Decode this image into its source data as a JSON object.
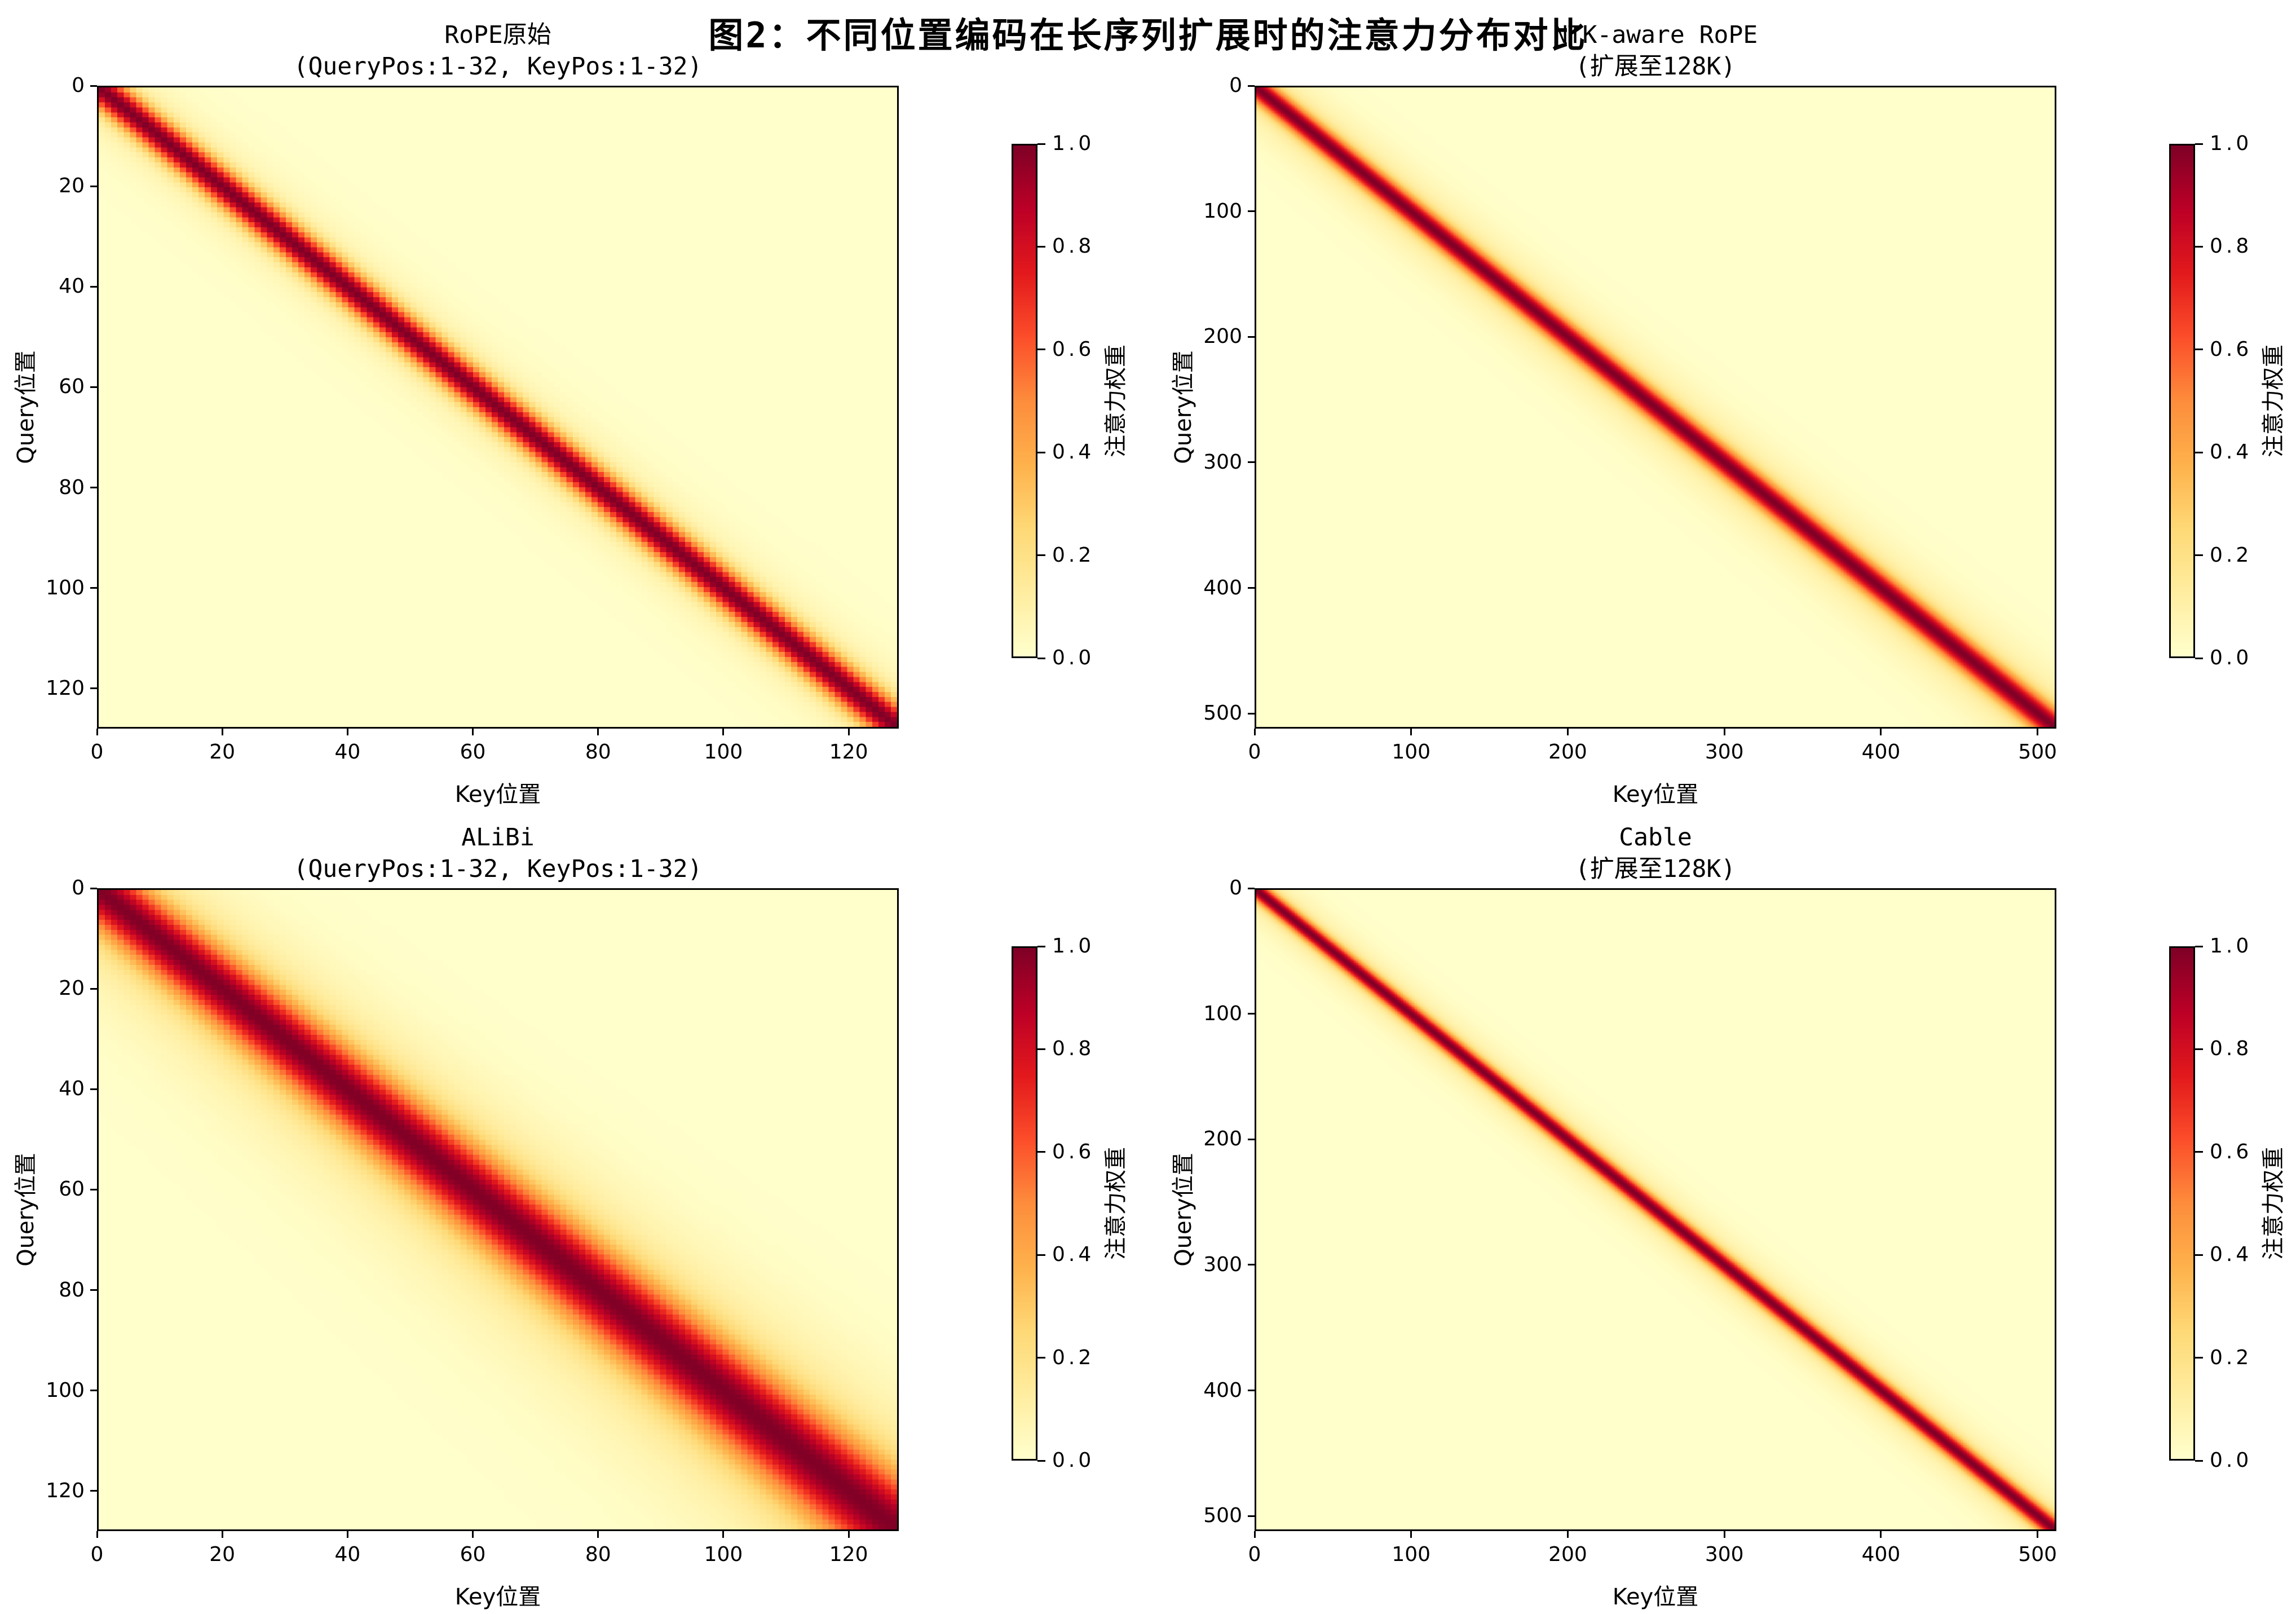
{
  "figure_title": "图2：不同位置编码在长序列扩展时的注意力分布对比",
  "colormap": {
    "name": "YlOrRd",
    "stops": [
      {
        "t": 0.0,
        "color": "#ffffcc"
      },
      {
        "t": 0.125,
        "color": "#ffeda0"
      },
      {
        "t": 0.25,
        "color": "#fed976"
      },
      {
        "t": 0.375,
        "color": "#feb24c"
      },
      {
        "t": 0.5,
        "color": "#fd8d3c"
      },
      {
        "t": 0.625,
        "color": "#fc4e2a"
      },
      {
        "t": 0.75,
        "color": "#e31a1c"
      },
      {
        "t": 0.875,
        "color": "#bd0026"
      },
      {
        "t": 1.0,
        "color": "#800026"
      }
    ]
  },
  "chart_data": [
    {
      "type": "heatmap",
      "title": "RoPE原始",
      "subtitle": "(QueryPos:1-32, KeyPos:1-32)",
      "xlabel": "Key位置",
      "ylabel": "Query位置",
      "grid_n": 128,
      "x_range": [
        0,
        128
      ],
      "y_range": [
        0,
        128
      ],
      "x_ticks": [
        0,
        20,
        40,
        60,
        80,
        100,
        120
      ],
      "y_ticks": [
        0,
        20,
        40,
        60,
        80,
        100,
        120
      ],
      "value_range": [
        0.0,
        1.0
      ],
      "value_model": {
        "kind": "gaussian_band_on_diagonal",
        "peak": 1.0,
        "background": 0.0,
        "sigma_start": 2.8,
        "sigma_end": 3.2,
        "halo_weight": 0.12,
        "halo_sigma_mult": 2.6
      },
      "colorbar": {
        "label": "注意力权重",
        "ticks": [
          "1.0",
          "0.8",
          "0.6",
          "0.4",
          "0.2",
          "0.0"
        ],
        "order": "top_to_bottom"
      }
    },
    {
      "type": "heatmap",
      "title": "NTK-aware RoPE",
      "subtitle": "(扩展至128K)",
      "xlabel": "Key位置",
      "ylabel": "Query位置",
      "grid_n": 512,
      "x_range": [
        0,
        512
      ],
      "y_range": [
        0,
        512
      ],
      "x_ticks": [
        0,
        100,
        200,
        300,
        400,
        500
      ],
      "y_ticks": [
        0,
        100,
        200,
        300,
        400,
        500
      ],
      "value_range": [
        0.0,
        1.0
      ],
      "value_model": {
        "kind": "gaussian_band_on_diagonal",
        "peak": 1.0,
        "background": 0.0,
        "sigma_start": 8.0,
        "sigma_end": 10.0,
        "halo_weight": 0.15,
        "halo_sigma_mult": 3.0
      },
      "colorbar": {
        "label": "注意力权重",
        "ticks": [
          "1.0",
          "0.8",
          "0.6",
          "0.4",
          "0.2",
          "0.0"
        ],
        "order": "top_to_bottom"
      }
    },
    {
      "type": "heatmap",
      "title": "ALiBi",
      "subtitle": "(QueryPos:1-32, KeyPos:1-32)",
      "xlabel": "Key位置",
      "ylabel": "Query位置",
      "grid_n": 128,
      "x_range": [
        0,
        128
      ],
      "y_range": [
        0,
        128
      ],
      "x_ticks": [
        0,
        20,
        40,
        60,
        80,
        100,
        120
      ],
      "y_ticks": [
        0,
        20,
        40,
        60,
        80,
        100,
        120
      ],
      "value_range": [
        0.0,
        1.0
      ],
      "value_model": {
        "kind": "gaussian_band_on_diagonal",
        "peak": 1.0,
        "background": 0.0,
        "sigma_start": 5.0,
        "sigma_end": 7.5,
        "halo_weight": 0.2,
        "halo_sigma_mult": 2.5
      },
      "colorbar": {
        "label": "注意力权重",
        "ticks": [
          "1.0",
          "0.8",
          "0.6",
          "0.4",
          "0.2",
          "0.0"
        ],
        "order": "top_to_bottom"
      }
    },
    {
      "type": "heatmap",
      "title": "Cable",
      "subtitle": "(扩展至128K)",
      "xlabel": "Key位置",
      "ylabel": "Query位置",
      "grid_n": 512,
      "x_range": [
        0,
        512
      ],
      "y_range": [
        0,
        512
      ],
      "x_ticks": [
        0,
        100,
        200,
        300,
        400,
        500
      ],
      "y_ticks": [
        0,
        100,
        200,
        300,
        400,
        500
      ],
      "value_range": [
        0.0,
        1.0
      ],
      "value_model": {
        "kind": "gaussian_band_on_diagonal",
        "peak": 1.0,
        "background": 0.0,
        "sigma_start": 6.0,
        "sigma_end": 7.0,
        "halo_weight": 0.14,
        "halo_sigma_mult": 3.0
      },
      "colorbar": {
        "label": "注意力权重",
        "ticks": [
          "1.0",
          "0.8",
          "0.6",
          "0.4",
          "0.2",
          "0.0"
        ],
        "order": "top_to_bottom"
      }
    }
  ]
}
